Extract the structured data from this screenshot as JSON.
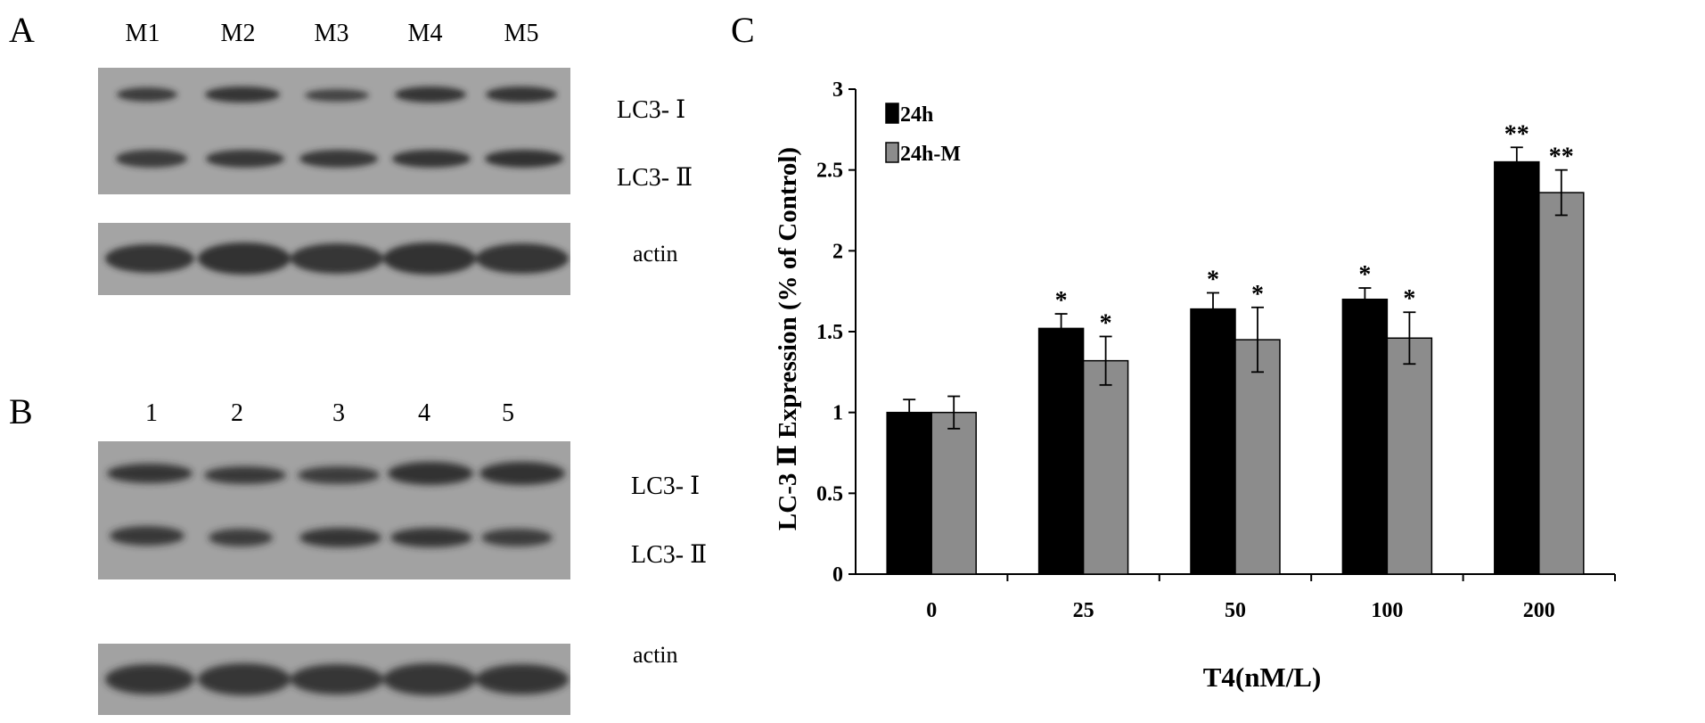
{
  "panelA": {
    "letter": "A",
    "lanes": [
      "M1",
      "M2",
      "M3",
      "M4",
      "M5"
    ],
    "bands": {
      "lc3_1": "LC3- Ⅰ",
      "lc3_2": "LC3- Ⅱ",
      "actin": "actin"
    }
  },
  "panelB": {
    "letter": "B",
    "lanes": [
      "1",
      "2",
      "3",
      "4",
      "5"
    ],
    "bands": {
      "lc3_1": "LC3- Ⅰ",
      "lc3_2": "LC3- Ⅱ",
      "actin": "actin"
    }
  },
  "panelC": {
    "letter": "C"
  },
  "chart_data": {
    "type": "bar",
    "title": "",
    "xlabel": "T4(nM/L)",
    "ylabel": "LC-3 Ⅱ Expression (% of Control)",
    "categories": [
      "0",
      "25",
      "50",
      "100",
      "200"
    ],
    "ylim": [
      0,
      3
    ],
    "yticks": [
      "0",
      "0.5",
      "1",
      "1.5",
      "2",
      "2.5",
      "3"
    ],
    "grid": false,
    "legend_position": "top-left",
    "series": [
      {
        "name": "24h",
        "color": "#000000",
        "values": [
          1.0,
          1.52,
          1.64,
          1.7,
          2.55
        ],
        "errors": [
          0.08,
          0.09,
          0.1,
          0.07,
          0.09
        ],
        "annotations": [
          "",
          "*",
          "*",
          "*",
          "**"
        ]
      },
      {
        "name": "24h-M",
        "color": "#8c8c8c",
        "values": [
          1.0,
          1.32,
          1.45,
          1.46,
          2.36
        ],
        "errors": [
          0.1,
          0.15,
          0.2,
          0.16,
          0.14
        ],
        "annotations": [
          "",
          "*",
          "*",
          "*",
          "**"
        ]
      }
    ]
  }
}
